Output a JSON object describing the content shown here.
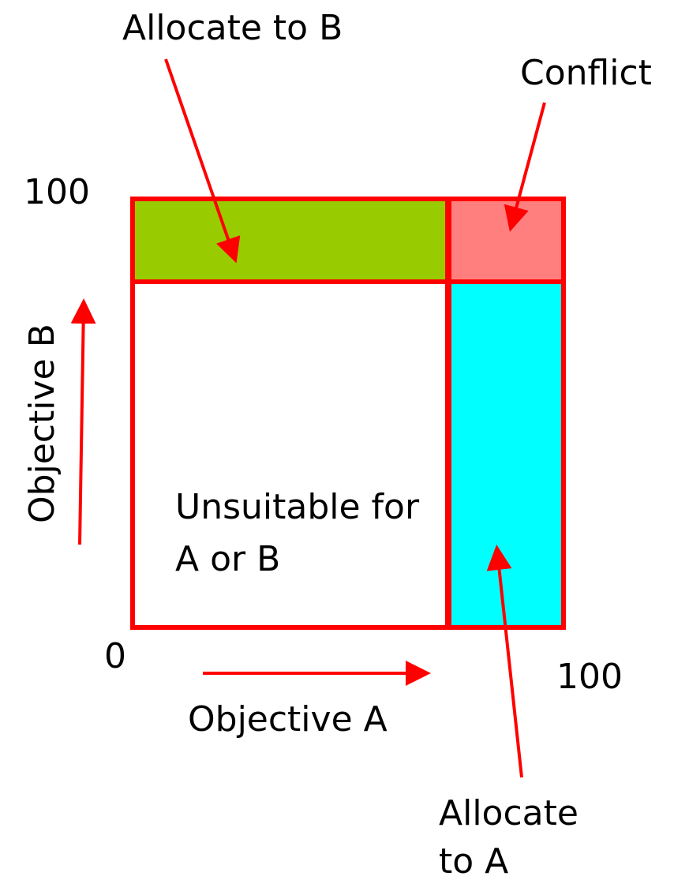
{
  "labels": {
    "allocate_b": "Allocate to B",
    "conflict": "Conflict",
    "unsuitable_line1": "Unsuitable for",
    "unsuitable_line2": "A or B",
    "allocate_a_line1": "Allocate",
    "allocate_a_line2": "to A",
    "objective_a": "Objective A",
    "objective_b": "Objective B",
    "axis_b_max": "100",
    "axis_a_max": "100",
    "origin": "0"
  },
  "colors": {
    "border": "#ff0000",
    "arrow": "#ff0000",
    "allocate_b_fill": "#99cc00",
    "conflict_fill": "#ff7f7f",
    "allocate_a_fill": "#00ffff",
    "unsuitable_fill": "#ffffff"
  }
}
